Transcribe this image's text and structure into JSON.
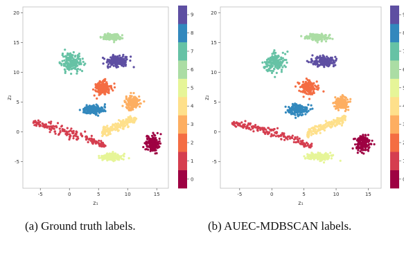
{
  "subfigures": [
    {
      "id": "a",
      "caption": "(a) Ground truth labels."
    },
    {
      "id": "b",
      "caption": "(b) AUEC-MDBSCAN labels."
    }
  ],
  "chart_data": [
    {
      "type": "scatter",
      "xlabel": "z₁",
      "ylabel": "z₂",
      "xlim": [
        -8,
        17
      ],
      "ylim": [
        -9.5,
        21
      ],
      "xticks": [
        -5,
        0,
        5,
        10,
        15
      ],
      "yticks": [
        -5,
        0,
        5,
        10,
        15,
        20
      ],
      "grid": false,
      "colorbar": {
        "ticks": [
          0,
          1,
          2,
          3,
          4,
          5,
          6,
          7,
          8,
          9
        ],
        "colors": [
          "#9e0142",
          "#d53e4f",
          "#f46d43",
          "#fdae61",
          "#fee08b",
          "#e6f598",
          "#abdda4",
          "#66c2a5",
          "#3288bd",
          "#5e4fa2"
        ],
        "placement": "right"
      },
      "clusters": [
        {
          "label": 0,
          "center": [
            14.2,
            -2.0
          ],
          "spread": [
            1.0,
            1.2
          ],
          "shape": "blob"
        },
        {
          "label": 1,
          "center": [
            0.0,
            -0.5
          ],
          "spread": [
            6.2,
            1.0
          ],
          "shape": "arc"
        },
        {
          "label": 2,
          "center": [
            5.7,
            7.5
          ],
          "spread": [
            1.2,
            1.0
          ],
          "shape": "blob"
        },
        {
          "label": 3,
          "center": [
            10.8,
            4.9
          ],
          "spread": [
            1.1,
            1.0
          ],
          "shape": "blob"
        },
        {
          "label": 4,
          "center": [
            8.5,
            1.0
          ],
          "spread": [
            3.0,
            0.7
          ],
          "shape": "tilted"
        },
        {
          "label": 5,
          "center": [
            7.2,
            -4.2
          ],
          "spread": [
            1.7,
            0.5
          ],
          "shape": "blob"
        },
        {
          "label": 6,
          "center": [
            7.3,
            15.9
          ],
          "spread": [
            1.4,
            0.5
          ],
          "shape": "blob"
        },
        {
          "label": 7,
          "center": [
            0.4,
            11.7
          ],
          "spread": [
            1.4,
            1.4
          ],
          "shape": "blob"
        },
        {
          "label": 8,
          "center": [
            4.0,
            3.7
          ],
          "spread": [
            1.6,
            0.7
          ],
          "shape": "blob"
        },
        {
          "label": 9,
          "center": [
            8.2,
            11.8
          ],
          "spread": [
            1.8,
            0.8
          ],
          "shape": "blob"
        }
      ]
    },
    {
      "type": "scatter",
      "xlabel": "z₁",
      "ylabel": "z₂",
      "xlim": [
        -8,
        17
      ],
      "ylim": [
        -9.5,
        21
      ],
      "xticks": [
        -5,
        0,
        5,
        10,
        15
      ],
      "yticks": [
        -5,
        0,
        5,
        10,
        15,
        20
      ],
      "grid": false,
      "colorbar": {
        "ticks": [
          0,
          1,
          2,
          3,
          4,
          5,
          6,
          7,
          8,
          9
        ],
        "colors": [
          "#9e0142",
          "#d53e4f",
          "#f46d43",
          "#fdae61",
          "#fee08b",
          "#e6f598",
          "#abdda4",
          "#66c2a5",
          "#3288bd",
          "#5e4fa2"
        ],
        "placement": "right"
      },
      "clusters": [
        {
          "label": 0,
          "center": [
            14.2,
            -2.0
          ],
          "spread": [
            1.0,
            1.2
          ],
          "shape": "blob"
        },
        {
          "label": 1,
          "center": [
            0.0,
            -0.5
          ],
          "spread": [
            6.2,
            1.0
          ],
          "shape": "arc"
        },
        {
          "label": 2,
          "center": [
            5.7,
            7.5
          ],
          "spread": [
            1.2,
            1.0
          ],
          "shape": "blob"
        },
        {
          "label": 3,
          "center": [
            10.8,
            4.9
          ],
          "spread": [
            1.1,
            1.0
          ],
          "shape": "blob"
        },
        {
          "label": 4,
          "center": [
            8.5,
            1.0
          ],
          "spread": [
            3.0,
            0.7
          ],
          "shape": "tilted"
        },
        {
          "label": 5,
          "center": [
            7.2,
            -4.2
          ],
          "spread": [
            1.7,
            0.5
          ],
          "shape": "blob"
        },
        {
          "label": 6,
          "center": [
            7.3,
            15.9
          ],
          "spread": [
            1.4,
            0.5
          ],
          "shape": "blob"
        },
        {
          "label": 7,
          "center": [
            0.4,
            11.7
          ],
          "spread": [
            1.4,
            1.4
          ],
          "shape": "blob"
        },
        {
          "label": 8,
          "center": [
            4.0,
            3.7
          ],
          "spread": [
            1.6,
            0.7
          ],
          "shape": "blob"
        },
        {
          "label": 9,
          "center": [
            8.2,
            11.8
          ],
          "spread": [
            1.8,
            0.8
          ],
          "shape": "blob"
        }
      ]
    }
  ]
}
